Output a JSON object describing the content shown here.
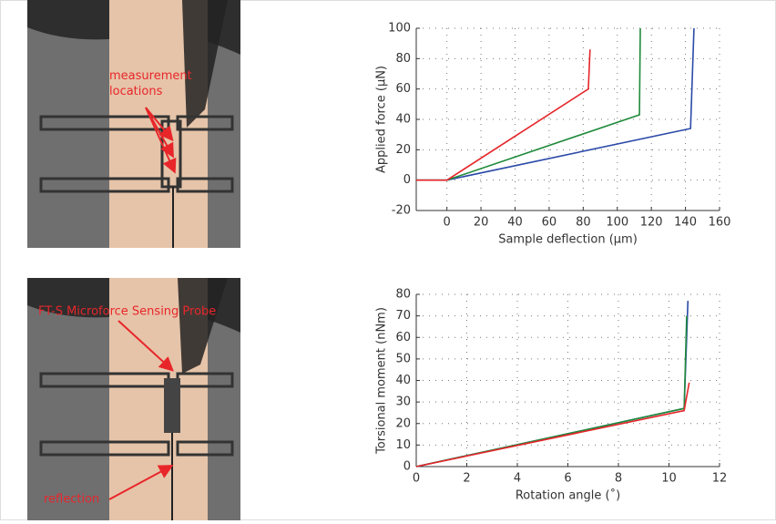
{
  "images": [
    {
      "annotations": [
        "measurement locations"
      ]
    },
    {
      "annotations": [
        "FT-S Microforce Sensing Probe",
        "reflection"
      ]
    }
  ],
  "chart_data": [
    {
      "type": "line",
      "xlabel": "Sample deflection (µm)",
      "ylabel": "Applied force (µN)",
      "xlim": [
        -18,
        160
      ],
      "ylim": [
        -20,
        100
      ],
      "xticks": [
        0,
        20,
        40,
        60,
        80,
        100,
        120,
        140,
        160
      ],
      "yticks": [
        -20,
        0,
        20,
        40,
        60,
        80,
        100
      ],
      "grid": true,
      "series": [
        {
          "color": "#2b4aa8",
          "x": [
            -18,
            0,
            143,
            145
          ],
          "values": [
            0,
            0,
            34,
            100
          ]
        },
        {
          "color": "#1f8a3a",
          "x": [
            -18,
            0,
            113,
            113.5
          ],
          "values": [
            0,
            0,
            43,
            100
          ]
        },
        {
          "color": "#e5262a",
          "x": [
            -18,
            0,
            83,
            84
          ],
          "values": [
            0,
            0,
            60,
            86
          ]
        }
      ]
    },
    {
      "type": "line",
      "xlabel": "Rotation angle (˚)",
      "ylabel": "Torsional moment (nNm)",
      "xlim": [
        0,
        12
      ],
      "ylim": [
        0,
        80
      ],
      "xticks": [
        0,
        2,
        4,
        6,
        8,
        10,
        12
      ],
      "yticks": [
        0,
        10,
        20,
        30,
        40,
        50,
        60,
        70,
        80
      ],
      "grid": true,
      "series": [
        {
          "color": "#2b4aa8",
          "x": [
            0,
            10.6,
            10.75
          ],
          "values": [
            0,
            27,
            77
          ]
        },
        {
          "color": "#1f8a3a",
          "x": [
            0,
            10.6,
            10.7
          ],
          "values": [
            0,
            27,
            70
          ]
        },
        {
          "color": "#e5262a",
          "x": [
            0,
            10.6,
            10.8
          ],
          "values": [
            0,
            26,
            39
          ]
        }
      ]
    }
  ]
}
